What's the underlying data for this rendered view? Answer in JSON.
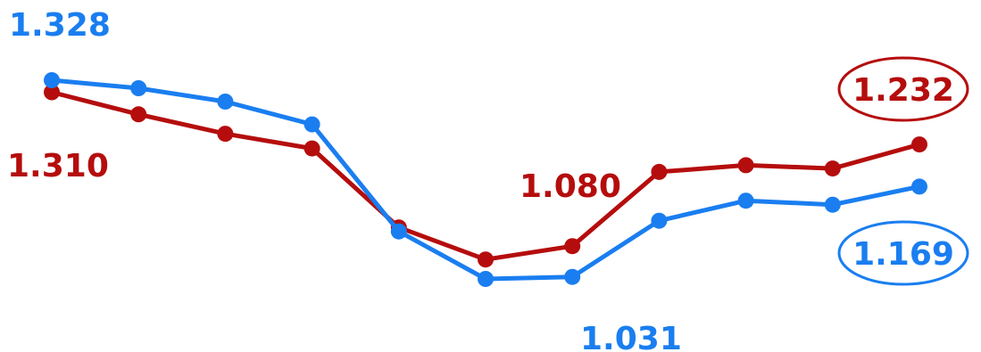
{
  "chart_data": {
    "type": "line",
    "x": [
      1,
      2,
      3,
      4,
      5,
      6,
      7,
      8,
      9,
      10,
      11
    ],
    "series": [
      {
        "color": "#1a7ef0",
        "values": [
          1.328,
          1.316,
          1.296,
          1.262,
          1.102,
          1.031,
          1.034,
          1.118,
          1.148,
          1.142,
          1.169
        ]
      },
      {
        "color": "#b50d0d",
        "values": [
          1.31,
          1.277,
          1.248,
          1.226,
          1.108,
          1.06,
          1.08,
          1.191,
          1.201,
          1.196,
          1.232
        ]
      }
    ],
    "labels": {
      "blue_start": "1.328",
      "red_start": "1.310",
      "red_mid": "1.080",
      "blue_mid": "1.031",
      "red_end": "1.232",
      "blue_end": "1.169"
    },
    "ylim": [
      0.95,
      1.4
    ],
    "grid": false,
    "legend": "none"
  }
}
